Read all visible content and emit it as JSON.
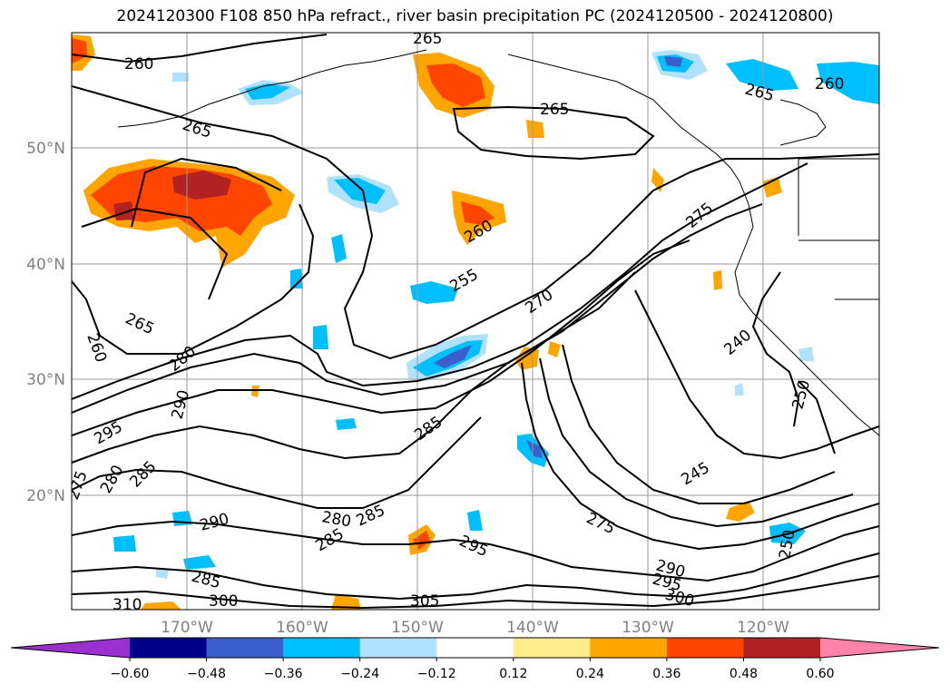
{
  "title": "2024120300 F108 850 hPa refract., river basin precipitation PC (2024120500 - 2024120800)",
  "lat_labels": [
    "50°N",
    "40°N",
    "30°N",
    "20°N"
  ],
  "lon_labels": [
    "170°W",
    "160°W",
    "150°W",
    "140°W",
    "130°W",
    "120°W"
  ],
  "contour_labels": [
    "265",
    "260",
    "265",
    "265",
    "260",
    "265",
    "255",
    "270",
    "275",
    "260",
    "260",
    "265",
    "280",
    "290",
    "295",
    "285",
    "240",
    "250",
    "250",
    "290",
    "285",
    "280",
    "285",
    "285",
    "295",
    "275",
    "245",
    "290",
    "295",
    "300",
    "305",
    "310",
    "300",
    "275",
    "280",
    "285"
  ],
  "colorbar": {
    "ticks": [
      "−0.60",
      "−0.48",
      "−0.36",
      "−0.24",
      "−0.12",
      "0.12",
      "0.24",
      "0.36",
      "0.48",
      "0.60"
    ],
    "colors": [
      "#9b30d0",
      "#00008b",
      "#3a5fcd",
      "#00bfff",
      "#b0e2ff",
      "#ffffff",
      "#ffec8b",
      "#ffa500",
      "#ff4500",
      "#b22222",
      "#ff82ab"
    ]
  }
}
